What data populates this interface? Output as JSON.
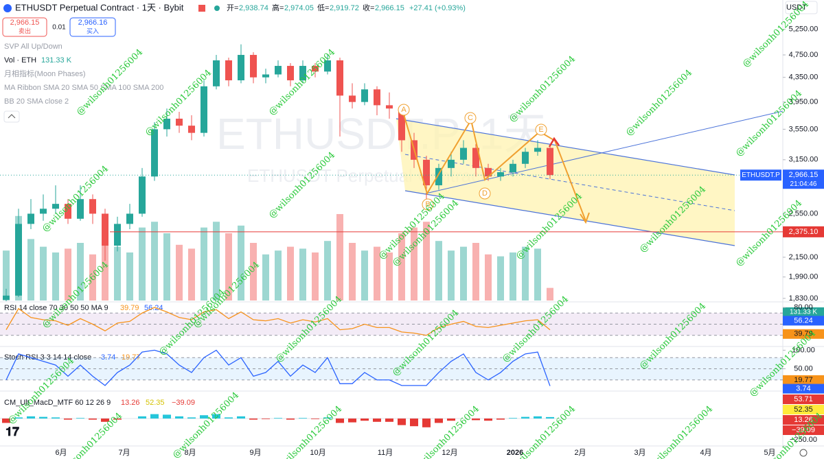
{
  "header": {
    "symbol": "ETHUSDT Perpetual Contract · 1天 · Bybit",
    "quote": [
      [
        "开=",
        "2,938.74"
      ],
      [
        "高=",
        "2,974.05"
      ],
      [
        "低=",
        "2,919.72"
      ],
      [
        "收=",
        "2,966.15"
      ]
    ],
    "change": "+27.41 (+0.93%)"
  },
  "trade": {
    "sell_price": "2,966.15",
    "sell": "卖出",
    "qty": "0.01",
    "buy_price": "2,966.16",
    "buy": "买入"
  },
  "indicators": [
    "SVP All Up/Down",
    "Vol · ETH",
    "月相指标(Moon Phases)",
    "MA Ribbon SMA 20 SMA 50 SMA 100 SMA 200",
    "BB 20 SMA close 2"
  ],
  "currency": "USDT",
  "watermark": "@wilsonh01256004",
  "symbol_watermark": "ETHUSDT.P, 1天",
  "symbol_watermark_sub": "ETHUSDT Perpetual Contract",
  "price_chart": {
    "ylim": [
      1805,
      5890
    ],
    "log_scale": true,
    "up_color": "#26a69a",
    "down_color": "#ef5350",
    "yticks": [
      {
        "value": 5250,
        "label": "5,250.00"
      },
      {
        "value": 4750,
        "label": "4,750.00"
      },
      {
        "value": 4350,
        "label": "4,350.00"
      },
      {
        "value": 3950,
        "label": "3,950.00"
      },
      {
        "value": 3550,
        "label": "3,550.00"
      },
      {
        "value": 3150,
        "label": "3,150.00"
      },
      {
        "value": 2550,
        "label": "2,550.00"
      },
      {
        "value": 2150,
        "label": "2,150.00"
      },
      {
        "value": 1990,
        "label": "1,990.00"
      },
      {
        "value": 1830,
        "label": "1,830.00"
      }
    ],
    "candles": {
      "open": [
        1820,
        1850,
        2450,
        2550,
        2600,
        2650,
        2500,
        2700,
        2550,
        2250,
        2450,
        2550,
        2950,
        3550,
        3700,
        3600,
        3500,
        4200,
        4650,
        4300,
        4750,
        4350,
        4400,
        4550,
        4300,
        4550,
        4450,
        4650,
        4050,
        3950,
        4150,
        3900,
        3850,
        3400,
        3150,
        2850,
        3050,
        3150,
        3300,
        3050,
        2950,
        3000,
        3100,
        3250,
        3300
      ],
      "high": [
        1900,
        2600,
        2700,
        2750,
        2850,
        2700,
        2850,
        2750,
        2600,
        2520,
        2650,
        3050,
        3650,
        3850,
        3800,
        3750,
        4300,
        4750,
        4700,
        4950,
        4800,
        4500,
        4650,
        4600,
        4650,
        4600,
        4750,
        4700,
        4250,
        4250,
        4200,
        4100,
        3900,
        3500,
        3200,
        3100,
        3250,
        3400,
        3350,
        3100,
        3050,
        3150,
        3300,
        3400,
        3350
      ],
      "low": [
        1810,
        1840,
        2400,
        2480,
        2550,
        2450,
        2480,
        2450,
        2120,
        2200,
        2400,
        2520,
        2900,
        3450,
        3500,
        3400,
        3450,
        4150,
        4200,
        4250,
        4250,
        4250,
        4350,
        4200,
        4250,
        4350,
        4400,
        3450,
        3850,
        3900,
        3750,
        3700,
        3250,
        3050,
        2700,
        2800,
        2950,
        3100,
        2950,
        2900,
        2900,
        2950,
        3050,
        3200,
        2919.72
      ],
      "close": [
        1850,
        2450,
        2550,
        2600,
        2650,
        2500,
        2700,
        2550,
        2250,
        2450,
        2550,
        2950,
        3550,
        3700,
        3600,
        3500,
        4200,
        4650,
        4300,
        4750,
        4350,
        4400,
        4550,
        4300,
        4550,
        4450,
        4650,
        4050,
        3950,
        4150,
        3900,
        3850,
        3400,
        3150,
        2850,
        3050,
        3150,
        3300,
        3050,
        2950,
        3000,
        3100,
        3250,
        3300,
        2966.15
      ]
    },
    "volume": [
      520,
      880,
      640,
      560,
      500,
      540,
      600,
      480,
      720,
      560,
      500,
      760,
      820,
      700,
      580,
      540,
      760,
      820,
      700,
      780,
      600,
      480,
      520,
      560,
      540,
      500,
      620,
      900,
      600,
      520,
      560,
      500,
      700,
      760,
      820,
      620,
      520,
      560,
      600,
      480,
      460,
      500,
      560,
      540,
      131.33
    ],
    "volume_label": "131.33 K",
    "last_price": {
      "value": 2966.15,
      "label": "2,966.15",
      "symbol": "ETHUSDT.P",
      "countdown": "21:04:46"
    },
    "level": {
      "value": 2375.1,
      "label": "2,375.10"
    },
    "pattern_points": [
      "A",
      "B",
      "C",
      "D",
      "E"
    ]
  },
  "rsi": {
    "title": "RSI 14 close 70 30 50 50 MA 9",
    "legend_values": [
      "39.79",
      "56.24"
    ],
    "ylim": [
      10,
      90
    ],
    "band": [
      30,
      70
    ],
    "levels": [
      70,
      50,
      30
    ],
    "yticks": [
      {
        "value": 80,
        "label": "80.00"
      }
    ],
    "value": 39.79,
    "ma_value": 56.24,
    "color": "#f7931a",
    "values": [
      40,
      78,
      62,
      58,
      56,
      48,
      60,
      50,
      38,
      52,
      55,
      70,
      80,
      72,
      62,
      58,
      72,
      76,
      60,
      72,
      58,
      56,
      60,
      52,
      58,
      54,
      60,
      40,
      42,
      50,
      44,
      44,
      36,
      34,
      30,
      44,
      50,
      55,
      46,
      44,
      48,
      52,
      56,
      58,
      39.79
    ]
  },
  "stoch": {
    "title": "Stoch RSI 3 3 14 14 close",
    "legend_values": [
      "3.74",
      "19.77"
    ],
    "ylim": [
      -10,
      110
    ],
    "band": [
      20,
      80
    ],
    "levels": [
      80,
      50,
      20
    ],
    "yticks": [
      {
        "value": 100,
        "label": "100.00"
      },
      {
        "value": 50,
        "label": "50.00"
      }
    ],
    "k": 3.74,
    "d": 19.77,
    "color": "#2962ff",
    "values": [
      20,
      90,
      80,
      70,
      60,
      30,
      60,
      30,
      5,
      40,
      60,
      95,
      100,
      90,
      60,
      40,
      80,
      100,
      60,
      80,
      30,
      40,
      70,
      30,
      60,
      40,
      80,
      10,
      10,
      40,
      20,
      20,
      5,
      5,
      5,
      40,
      70,
      90,
      40,
      20,
      40,
      70,
      90,
      95,
      3.74
    ]
  },
  "macd": {
    "title": "CM_Ult_MacD_MTF 60 12 26 9",
    "legend_values": [
      "13.26",
      "52.35",
      "−39.09"
    ],
    "legend_colors": [
      "#e53935",
      "#d4c200",
      "#e53935"
    ],
    "ylim": [
      -250,
      250
    ],
    "yticks": [
      {
        "value": -250,
        "label": "−250.00"
      }
    ],
    "axis_tags": [
      "53.71",
      "52.35",
      "13.26",
      "−39.09"
    ],
    "axis_tag_colors": [
      "#e53935",
      "#ffeb3b",
      "#e53935",
      "#e53935"
    ],
    "values": [
      -40,
      10,
      20,
      15,
      10,
      -10,
      5,
      -10,
      -30,
      -10,
      0,
      20,
      40,
      35,
      20,
      10,
      30,
      40,
      10,
      20,
      -10,
      -5,
      5,
      -10,
      5,
      -5,
      10,
      -40,
      -35,
      -20,
      -30,
      -30,
      -60,
      -70,
      -80,
      -40,
      -20,
      0,
      -15,
      -20,
      -10,
      5,
      15,
      20,
      13.26
    ]
  },
  "time_axis": [
    "6月",
    "7月",
    "8月",
    "9月",
    "10月",
    "11月",
    "12月",
    "2026",
    "2月",
    "3月",
    "4月",
    "5月"
  ]
}
